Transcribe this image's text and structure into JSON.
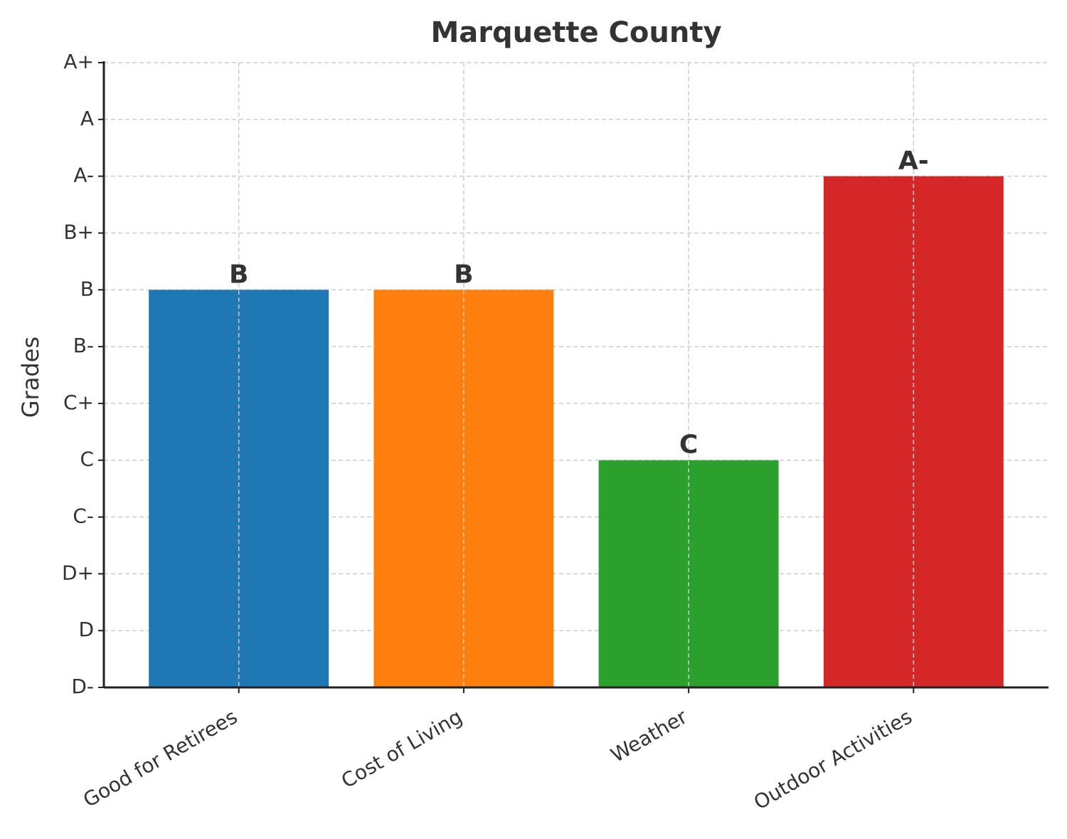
{
  "chart_data": {
    "type": "bar",
    "title": "Marquette County",
    "y_label": "Grades",
    "categories": [
      "Good for Retirees",
      "Cost of Living",
      "Weather",
      "Outdoor Activities"
    ],
    "values": [
      7,
      7,
      4,
      9
    ],
    "value_labels": [
      "B",
      "B",
      "C",
      "A-"
    ],
    "colors": [
      "#1f77b4",
      "#ff7f0e",
      "#2ca02c",
      "#d62728"
    ],
    "ylim": [
      0,
      11
    ],
    "yticks": [
      {
        "value": 0,
        "label": "D-"
      },
      {
        "value": 1,
        "label": "D"
      },
      {
        "value": 2,
        "label": "D+"
      },
      {
        "value": 3,
        "label": "C-"
      },
      {
        "value": 4,
        "label": "C"
      },
      {
        "value": 5,
        "label": "C+"
      },
      {
        "value": 6,
        "label": "B-"
      },
      {
        "value": 7,
        "label": "B"
      },
      {
        "value": 8,
        "label": "B+"
      },
      {
        "value": 9,
        "label": "A-"
      },
      {
        "value": 10,
        "label": "A"
      },
      {
        "value": 11,
        "label": "A+"
      }
    ],
    "grid": true
  }
}
